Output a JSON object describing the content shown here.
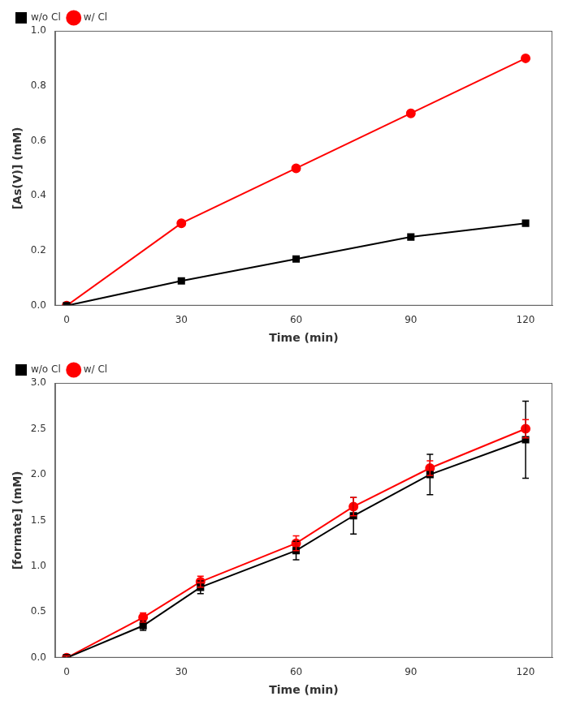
{
  "chart_data": [
    {
      "type": "line",
      "x_label": "Time (min)",
      "y_label": "[As(V)] (mM)",
      "xlim": [
        -3,
        127
      ],
      "xticks": [
        0,
        30,
        60,
        90,
        120
      ],
      "ylim": [
        0,
        1.0
      ],
      "yticks": [
        {
          "value": 0,
          "label": "0.0"
        },
        0.2,
        0.4,
        0.6,
        0.8,
        {
          "value": 1,
          "label": "1.0"
        }
      ],
      "grid": false,
      "legend": "upper left",
      "series": [
        {
          "name": "w/o Cl",
          "color": "#000000",
          "marker": "square",
          "x": [
            0,
            30,
            60,
            90,
            120
          ],
          "values": [
            0.0,
            0.09,
            0.17,
            0.25,
            0.3
          ]
        },
        {
          "name": "w/ Cl",
          "color": "#ff0000",
          "marker": "circle",
          "x": [
            0,
            30,
            60,
            90,
            120
          ],
          "values": [
            0.0,
            0.3,
            0.5,
            0.7,
            0.9
          ]
        }
      ]
    },
    {
      "type": "line",
      "x_label": "Time (min)",
      "y_label": "[formate] (mM)",
      "xlim": [
        -3,
        127
      ],
      "xticks": [
        0,
        30,
        60,
        90,
        120
      ],
      "ylim": [
        0,
        3.0
      ],
      "yticks": [
        {
          "value": 0,
          "label": "0.0"
        },
        0.5,
        {
          "value": 1,
          "label": "1.0"
        },
        1.5,
        {
          "value": 2,
          "label": "2.0"
        },
        2.5,
        {
          "value": 3,
          "label": "3.0"
        }
      ],
      "grid": false,
      "legend": "upper left",
      "series": [
        {
          "name": "w/o Cl",
          "color": "#000000",
          "marker": "square",
          "x": [
            0,
            20,
            35,
            60,
            75,
            95,
            120
          ],
          "values": [
            0.0,
            0.35,
            0.77,
            1.17,
            1.55,
            2.0,
            2.38
          ],
          "yerr": [
            0.02,
            0.05,
            0.07,
            0.1,
            0.2,
            0.22,
            0.42
          ]
        },
        {
          "name": "w/ Cl",
          "color": "#ff0000",
          "marker": "circle",
          "x": [
            0,
            20,
            35,
            60,
            75,
            95,
            120
          ],
          "values": [
            0.0,
            0.44,
            0.83,
            1.25,
            1.65,
            2.07,
            2.5
          ],
          "yerr": [
            0.02,
            0.05,
            0.06,
            0.08,
            0.1,
            0.08,
            0.1
          ]
        }
      ]
    }
  ]
}
